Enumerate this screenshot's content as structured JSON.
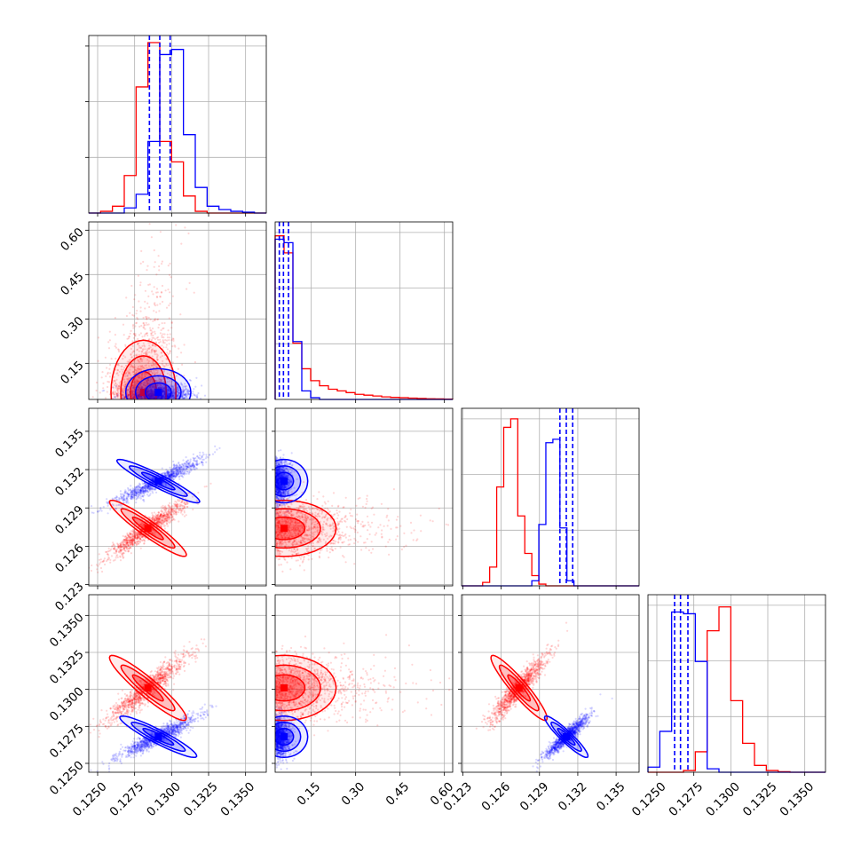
{
  "chart_data": {
    "type": "corner",
    "grid": true,
    "colors": {
      "red": "#ff0000",
      "blue": "#0000ff"
    },
    "series": [
      {
        "color": "red"
      },
      {
        "color": "blue"
      }
    ],
    "params": [
      {
        "range": [
          0.1244,
          0.1364
        ],
        "ticks": [
          0.125,
          0.1275,
          0.13,
          0.1325,
          0.135
        ],
        "labels": [
          "0.1250",
          "0.1275",
          "0.1300",
          "0.1325",
          "0.1350"
        ]
      },
      {
        "range": [
          0.028,
          0.628
        ],
        "ticks": [
          0.15,
          0.3,
          0.45,
          0.6
        ],
        "labels": [
          "0.15",
          "0.30",
          "0.45",
          "0.60"
        ]
      },
      {
        "range": [
          0.1229,
          0.1368
        ],
        "ticks": [
          0.123,
          0.126,
          0.129,
          0.132,
          0.135
        ],
        "labels": [
          "0.123",
          "0.126",
          "0.129",
          "0.132",
          "0.135"
        ]
      },
      {
        "range": [
          0.1244,
          0.1364
        ],
        "ticks": [
          0.125,
          0.1275,
          0.13,
          0.1325,
          0.135
        ],
        "labels": [
          "0.1250",
          "0.1275",
          "0.1300",
          "0.1325",
          "0.1350"
        ]
      }
    ],
    "diag_hist": [
      {
        "param": 0,
        "bins": [
          0.1244,
          0.1252,
          0.126,
          0.1268,
          0.1276,
          0.1284,
          0.1292,
          0.13,
          0.1308,
          0.1316,
          0.1324,
          0.1332,
          0.134,
          0.1348,
          0.1356,
          0.1364
        ],
        "red": [
          0,
          0.01,
          0.04,
          0.22,
          0.74,
          1.0,
          0.42,
          0.3,
          0.1,
          0.01,
          0,
          0,
          0,
          0,
          0
        ],
        "blue": [
          0,
          0,
          0,
          0.03,
          0.11,
          0.42,
          0.93,
          0.96,
          0.46,
          0.15,
          0.04,
          0.02,
          0.01,
          0.005,
          0
        ],
        "quantiles": [
          0.1285,
          0.1292,
          0.1299
        ]
      },
      {
        "param": 1,
        "bins": [
          0.028,
          0.058,
          0.088,
          0.118,
          0.148,
          0.178,
          0.208,
          0.238,
          0.268,
          0.298,
          0.328,
          0.358,
          0.388,
          0.418,
          0.448,
          0.478,
          0.508,
          0.538,
          0.568,
          0.598,
          0.628
        ],
        "red": [
          0.96,
          0.86,
          0.33,
          0.18,
          0.11,
          0.08,
          0.06,
          0.05,
          0.04,
          0.03,
          0.025,
          0.02,
          0.015,
          0.012,
          0.01,
          0.008,
          0.006,
          0.004,
          0.003,
          0.002
        ],
        "blue": [
          0.94,
          0.92,
          0.34,
          0.05,
          0.01,
          0,
          0,
          0,
          0,
          0,
          0,
          0,
          0,
          0,
          0,
          0,
          0,
          0,
          0,
          0
        ],
        "quantiles": [
          0.042,
          0.056,
          0.073
        ]
      },
      {
        "param": 2,
        "bins": [
          0.1229,
          0.12345,
          0.124,
          0.12455,
          0.1251,
          0.12565,
          0.1262,
          0.12675,
          0.1273,
          0.12785,
          0.1284,
          0.12895,
          0.1295,
          0.13005,
          0.1306,
          0.13115,
          0.1317,
          0.13225,
          0.1328,
          0.13335,
          0.1339,
          0.13445,
          0.135,
          0.13555,
          0.1361,
          0.1368
        ],
        "red": [
          0,
          0,
          0,
          0.02,
          0.11,
          0.58,
          0.93,
          0.98,
          0.41,
          0.19,
          0.06,
          0.01,
          0,
          0,
          0,
          0,
          0,
          0,
          0,
          0,
          0,
          0,
          0,
          0,
          0
        ],
        "blue": [
          0,
          0,
          0,
          0,
          0,
          0,
          0,
          0,
          0,
          0,
          0.03,
          0.36,
          0.84,
          0.86,
          0.34,
          0.03,
          0,
          0,
          0,
          0,
          0,
          0,
          0,
          0,
          0
        ],
        "quantiles": [
          0.1306,
          0.1311,
          0.1316
        ]
      },
      {
        "param": 3,
        "bins": [
          0.1244,
          0.1252,
          0.126,
          0.1268,
          0.1276,
          0.1284,
          0.1292,
          0.13,
          0.1308,
          0.1316,
          0.1324,
          0.1332,
          0.134,
          0.1348,
          0.1356,
          0.1364
        ],
        "red": [
          0,
          0,
          0,
          0.01,
          0.12,
          0.83,
          0.97,
          0.42,
          0.17,
          0.04,
          0.01,
          0.003,
          0,
          0,
          0
        ],
        "blue": [
          0.03,
          0.24,
          0.94,
          0.93,
          0.65,
          0.02,
          0,
          0,
          0,
          0,
          0,
          0,
          0,
          0,
          0
        ],
        "quantiles": [
          0.1262,
          0.1266,
          0.1271
        ]
      }
    ],
    "scatter": [
      {
        "row": 1,
        "col": 0,
        "red": {
          "mx": 0.1281,
          "my": 0.062,
          "sx": 0.0011,
          "sy": 0.25,
          "rho": 0.1,
          "dist": "exp"
        },
        "blue": {
          "mx": 0.1291,
          "my": 0.06,
          "sx": 0.0011,
          "sy": 0.022,
          "rho": 0.6,
          "dist": "halfnormal"
        }
      },
      {
        "row": 2,
        "col": 0,
        "red": {
          "mx": 0.1284,
          "my": 0.1274,
          "sx": 0.0013,
          "sy": 0.0011,
          "rho": 0.94
        },
        "blue": {
          "mx": 0.1291,
          "my": 0.1311,
          "sx": 0.0014,
          "sy": 0.00085,
          "rho": 0.94
        }
      },
      {
        "row": 2,
        "col": 1,
        "red": {
          "mx": 0.062,
          "my": 0.1274,
          "sx": 0.25,
          "sy": 0.0011,
          "rho": 0.0,
          "distx": "exp"
        },
        "blue": {
          "mx": 0.06,
          "my": 0.1311,
          "sx": 0.022,
          "sy": 0.00085,
          "rho": 0.3,
          "distx": "halfnormal"
        }
      },
      {
        "row": 3,
        "col": 0,
        "red": {
          "mx": 0.1284,
          "my": 0.1301,
          "sx": 0.0013,
          "sy": 0.0011,
          "rho": 0.93
        },
        "blue": {
          "mx": 0.1291,
          "my": 0.1268,
          "sx": 0.0013,
          "sy": 0.0007,
          "rho": 0.93
        }
      },
      {
        "row": 3,
        "col": 1,
        "red": {
          "mx": 0.062,
          "my": 0.1301,
          "sx": 0.25,
          "sy": 0.0011,
          "rho": 0.0,
          "distx": "exp"
        },
        "blue": {
          "mx": 0.06,
          "my": 0.1268,
          "sx": 0.022,
          "sy": 0.0007,
          "rho": 0.3,
          "distx": "halfnormal"
        }
      },
      {
        "row": 3,
        "col": 2,
        "red": {
          "mx": 0.1274,
          "my": 0.1301,
          "sx": 0.0011,
          "sy": 0.0011,
          "rho": 0.93
        },
        "blue": {
          "mx": 0.1311,
          "my": 0.1268,
          "sx": 0.00085,
          "sy": 0.0007,
          "rho": 0.93
        }
      }
    ]
  }
}
